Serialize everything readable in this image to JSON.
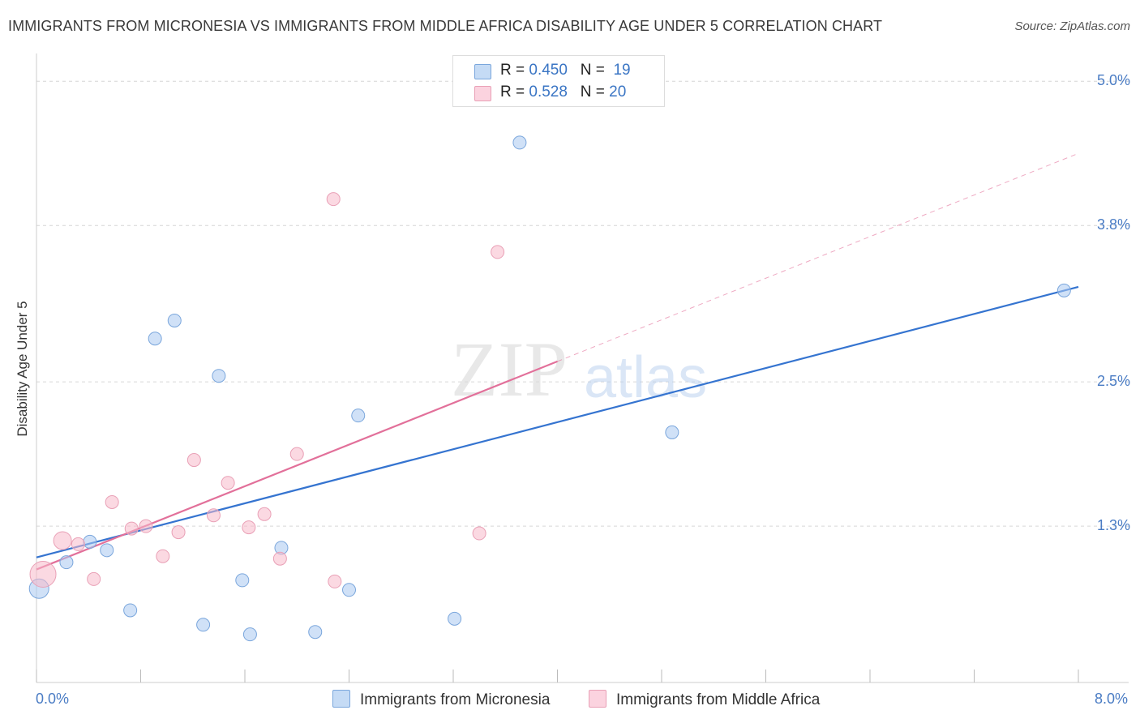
{
  "title": "IMMIGRANTS FROM MICRONESIA VS IMMIGRANTS FROM MIDDLE AFRICA DISABILITY AGE UNDER 5 CORRELATION CHART",
  "source": "Source: ZipAtlas.com",
  "watermark": {
    "zip": "ZIP",
    "atlas": "atlas"
  },
  "correlation": [
    {
      "r_label": "R =",
      "r_value": "0.450",
      "n_label": "N =",
      "n_value": "19",
      "color": "#aac8f0"
    },
    {
      "r_label": "R =",
      "r_value": "0.528",
      "n_label": "N =",
      "n_value": "20",
      "color": "#f7b9cb"
    }
  ],
  "chart_data": {
    "type": "scatter",
    "ylabel": "Disability Age Under 5",
    "xlim": [
      0.0,
      8.0
    ],
    "ylim": [
      0.0,
      5.0
    ],
    "x_tick_labels": [
      "0.0%",
      "8.0%"
    ],
    "y_ticks": [
      1.3,
      2.5,
      3.8,
      5.0
    ],
    "y_tick_labels": [
      "1.3%",
      "2.5%",
      "3.8%",
      "5.0%"
    ],
    "grid": true,
    "legend_position": "bottom-center",
    "series": [
      {
        "name": "Immigrants from Micronesia",
        "color": "#aac8f0",
        "stroke": "#7aa6dc",
        "line_color": "#3574d0",
        "points": [
          [
            0.02,
            0.78
          ],
          [
            0.23,
            1.0
          ],
          [
            0.41,
            1.17
          ],
          [
            0.54,
            1.1
          ],
          [
            0.72,
            0.6
          ],
          [
            0.91,
            2.86
          ],
          [
            1.06,
            3.01
          ],
          [
            1.28,
            0.48
          ],
          [
            1.4,
            2.55
          ],
          [
            1.58,
            0.85
          ],
          [
            1.64,
            0.4
          ],
          [
            1.88,
            1.12
          ],
          [
            2.14,
            0.42
          ],
          [
            2.4,
            0.77
          ],
          [
            2.47,
            2.22
          ],
          [
            3.21,
            0.53
          ],
          [
            3.71,
            4.49
          ],
          [
            4.88,
            2.08
          ],
          [
            7.89,
            3.26
          ]
        ],
        "trend": {
          "from": [
            0.0,
            1.04
          ],
          "to": [
            8.0,
            3.29
          ],
          "dashed_to": null
        }
      },
      {
        "name": "Immigrants from Middle Africa",
        "color": "#f7b9cb",
        "stroke": "#e9a0b6",
        "line_color": "#e2709a",
        "points": [
          [
            0.05,
            0.9
          ],
          [
            0.2,
            1.18
          ],
          [
            0.32,
            1.15
          ],
          [
            0.44,
            0.86
          ],
          [
            0.58,
            1.5
          ],
          [
            0.73,
            1.28
          ],
          [
            0.84,
            1.3
          ],
          [
            0.97,
            1.05
          ],
          [
            1.09,
            1.25
          ],
          [
            1.21,
            1.85
          ],
          [
            1.36,
            1.39
          ],
          [
            1.47,
            1.66
          ],
          [
            1.63,
            1.29
          ],
          [
            1.75,
            1.4
          ],
          [
            1.87,
            1.03
          ],
          [
            2.0,
            1.9
          ],
          [
            2.29,
            0.84
          ],
          [
            2.28,
            4.02
          ],
          [
            3.4,
            1.24
          ],
          [
            3.54,
            3.58
          ]
        ],
        "trend": {
          "from": [
            0.0,
            0.94
          ],
          "to": [
            4.0,
            2.67
          ],
          "dashed_to": [
            8.0,
            4.4
          ]
        }
      }
    ]
  }
}
